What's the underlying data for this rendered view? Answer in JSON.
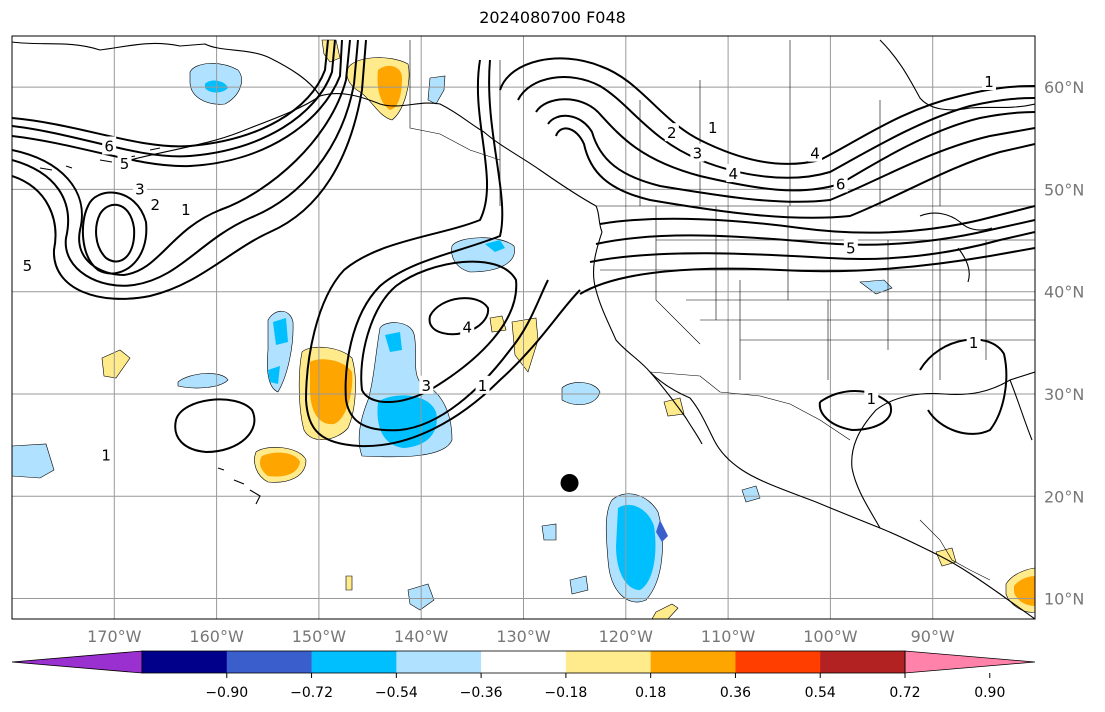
{
  "title": "2024080700 F048",
  "map": {
    "lon_range": [
      -180,
      -80
    ],
    "lat_range": [
      8,
      65
    ],
    "lon_ticks": [
      {
        "value": -170,
        "label": "170°W"
      },
      {
        "value": -160,
        "label": "160°W"
      },
      {
        "value": -150,
        "label": "150°W"
      },
      {
        "value": -140,
        "label": "140°W"
      },
      {
        "value": -130,
        "label": "130°W"
      },
      {
        "value": -120,
        "label": "120°W"
      },
      {
        "value": -110,
        "label": "110°W"
      },
      {
        "value": -100,
        "label": "100°W"
      },
      {
        "value": -90,
        "label": "90°W"
      }
    ],
    "lat_ticks": [
      {
        "value": 10,
        "label": "10°N"
      },
      {
        "value": 20,
        "label": "20°N"
      },
      {
        "value": 30,
        "label": "30°N"
      },
      {
        "value": 40,
        "label": "40°N"
      },
      {
        "value": 50,
        "label": "50°N"
      },
      {
        "value": 60,
        "label": "60°N"
      }
    ],
    "marker": {
      "lon": -125.5,
      "lat": 21.3,
      "color": "#000000"
    },
    "contour_labels": [
      {
        "text": "6",
        "lon": -170.5,
        "lat": 54.2
      },
      {
        "text": "5",
        "lon": -169,
        "lat": 52.5
      },
      {
        "text": "3",
        "lon": -167.5,
        "lat": 50
      },
      {
        "text": "2",
        "lon": -166,
        "lat": 48.5
      },
      {
        "text": "1",
        "lon": -163,
        "lat": 48
      },
      {
        "text": "5",
        "lon": -178.5,
        "lat": 42.5
      },
      {
        "text": "1",
        "lon": -170.8,
        "lat": 24
      },
      {
        "text": "4",
        "lon": -135.5,
        "lat": 36.5
      },
      {
        "text": "3",
        "lon": -139.5,
        "lat": 30.8
      },
      {
        "text": "1",
        "lon": -134,
        "lat": 30.8
      },
      {
        "text": "2",
        "lon": -115.5,
        "lat": 55.5
      },
      {
        "text": "1",
        "lon": -111.5,
        "lat": 56
      },
      {
        "text": "3",
        "lon": -113,
        "lat": 53.5
      },
      {
        "text": "4",
        "lon": -109.5,
        "lat": 51.5
      },
      {
        "text": "4",
        "lon": -101.5,
        "lat": 53.5
      },
      {
        "text": "6",
        "lon": -99,
        "lat": 50.5
      },
      {
        "text": "5",
        "lon": -98,
        "lat": 44.2
      },
      {
        "text": "1",
        "lon": -84.5,
        "lat": 60.5
      },
      {
        "text": "1",
        "lon": -96,
        "lat": 29.5
      },
      {
        "text": "1",
        "lon": -86,
        "lat": 35
      }
    ]
  },
  "colorbar": {
    "colors": [
      "#9b30d0",
      "#00008b",
      "#3a5fcd",
      "#00bfff",
      "#b0e2ff",
      "#ffffff",
      "#ffeb8b",
      "#ffa500",
      "#ff3e00",
      "#b22222",
      "#ff82ab"
    ],
    "ticks": [
      "−0.90",
      "−0.72",
      "−0.54",
      "−0.36",
      "−0.18",
      "0.18",
      "0.36",
      "0.54",
      "0.72",
      "0.90"
    ]
  }
}
